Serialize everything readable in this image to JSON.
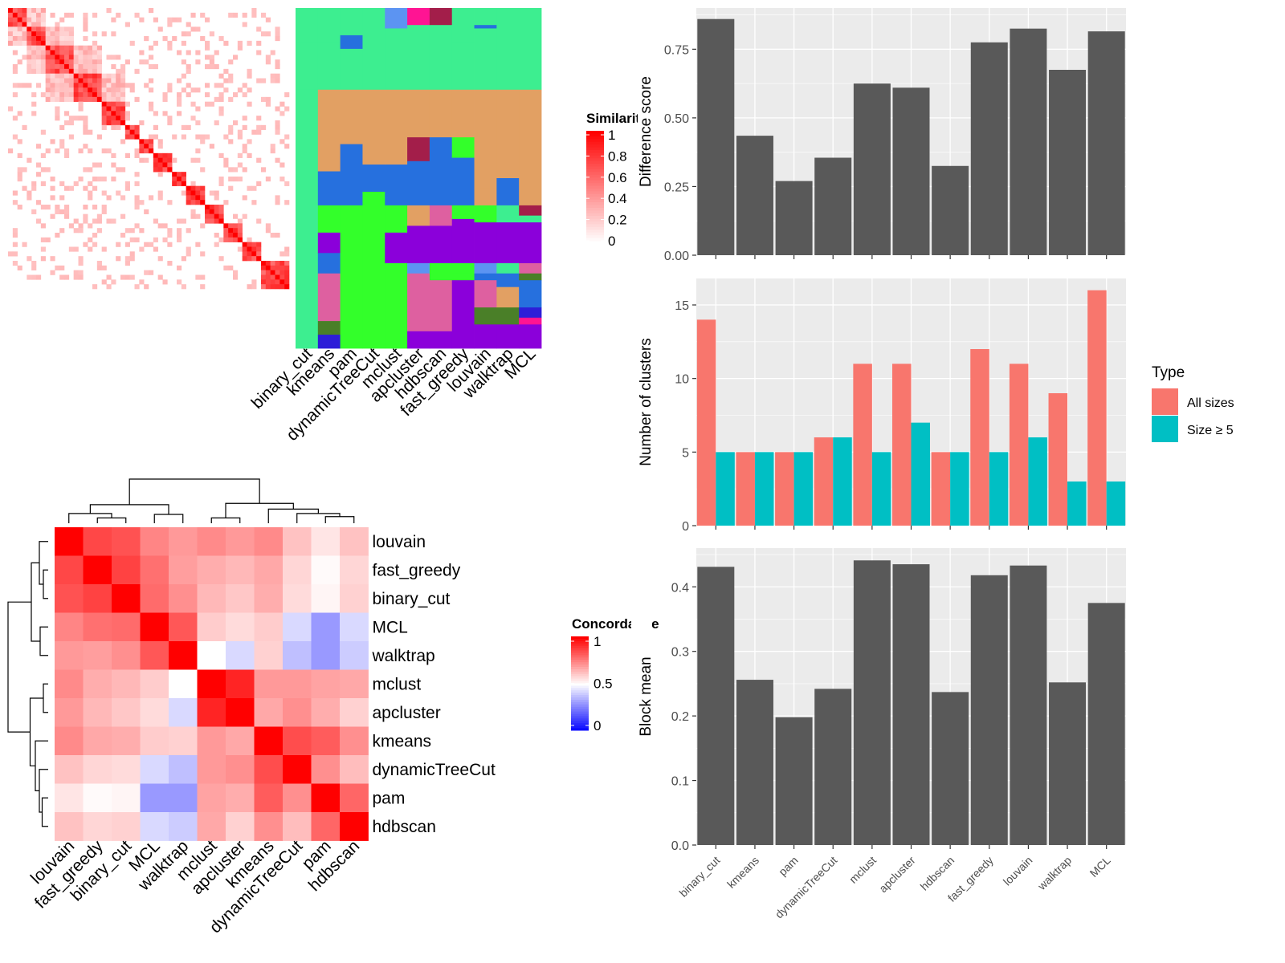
{
  "chart_data": [
    {
      "type": "heatmap",
      "panel": "similarity-heatmap",
      "legend_title": "Similarity",
      "legend_ticks": [
        "1",
        "0.8",
        "0.6",
        "0.4",
        "0.2",
        "0"
      ],
      "colors": {
        "high": "#ff0000",
        "low": "#ffffff"
      }
    },
    {
      "type": "heatmap",
      "panel": "cluster-membership",
      "methods": [
        "binary_cut",
        "kmeans",
        "pam",
        "dynamicTreeCut",
        "mclust",
        "apcluster",
        "hdbscan",
        "fast_greedy",
        "louvain",
        "walktrap",
        "MCL"
      ]
    },
    {
      "type": "heatmap",
      "panel": "concordance-heatmap",
      "legend_title": "Concordance",
      "legend_ticks": [
        "1",
        "0.5",
        "0"
      ],
      "colors": {
        "high": "#ff0000",
        "mid": "#ffffff",
        "low": "#0000ff"
      },
      "row_labels": [
        "louvain",
        "fast_greedy",
        "binary_cut",
        "MCL",
        "walktrap",
        "mclust",
        "apcluster",
        "kmeans",
        "dynamicTreeCut",
        "pam",
        "hdbscan"
      ],
      "col_labels": [
        "louvain",
        "fast_greedy",
        "binary_cut",
        "MCL",
        "walktrap",
        "mclust",
        "apcluster",
        "kmeans",
        "dynamicTreeCut",
        "pam",
        "hdbscan"
      ],
      "matrix": [
        [
          1.0,
          0.86,
          0.84,
          0.74,
          0.7,
          0.73,
          0.7,
          0.73,
          0.62,
          0.55,
          0.62
        ],
        [
          0.86,
          1.0,
          0.87,
          0.78,
          0.69,
          0.66,
          0.64,
          0.67,
          0.58,
          0.51,
          0.58
        ],
        [
          0.84,
          0.87,
          1.0,
          0.79,
          0.72,
          0.64,
          0.61,
          0.66,
          0.57,
          0.52,
          0.59
        ],
        [
          0.74,
          0.78,
          0.79,
          1.0,
          0.83,
          0.6,
          0.57,
          0.6,
          0.47,
          0.42,
          0.47
        ],
        [
          0.7,
          0.69,
          0.72,
          0.83,
          1.0,
          0.5,
          0.47,
          0.59,
          0.45,
          0.42,
          0.46
        ],
        [
          0.73,
          0.66,
          0.64,
          0.6,
          0.5,
          1.0,
          0.93,
          0.7,
          0.7,
          0.68,
          0.67
        ],
        [
          0.7,
          0.64,
          0.61,
          0.57,
          0.47,
          0.93,
          1.0,
          0.67,
          0.72,
          0.66,
          0.59
        ],
        [
          0.73,
          0.67,
          0.66,
          0.6,
          0.59,
          0.7,
          0.67,
          1.0,
          0.85,
          0.82,
          0.72
        ],
        [
          0.62,
          0.58,
          0.57,
          0.47,
          0.45,
          0.7,
          0.72,
          0.85,
          1.0,
          0.72,
          0.63
        ],
        [
          0.55,
          0.51,
          0.52,
          0.42,
          0.42,
          0.68,
          0.66,
          0.82,
          0.72,
          1.0,
          0.8
        ],
        [
          0.62,
          0.58,
          0.59,
          0.47,
          0.46,
          0.67,
          0.59,
          0.72,
          0.63,
          0.8,
          1.0
        ]
      ]
    },
    {
      "type": "bar",
      "panel": "difference-score",
      "categories": [
        "binary_cut",
        "kmeans",
        "pam",
        "dynamicTreeCut",
        "mclust",
        "apcluster",
        "hdbscan",
        "fast_greedy",
        "louvain",
        "walktrap",
        "MCL"
      ],
      "values": [
        0.86,
        0.435,
        0.27,
        0.355,
        0.625,
        0.61,
        0.325,
        0.775,
        0.825,
        0.675,
        0.815
      ],
      "ylabel": "Difference score",
      "ylim": [
        0,
        0.9
      ],
      "yticks": [
        "0.00",
        "0.25",
        "0.50",
        "0.75"
      ],
      "bar_color": "#595959"
    },
    {
      "type": "bar",
      "panel": "number-of-clusters",
      "categories": [
        "binary_cut",
        "kmeans",
        "pam",
        "dynamicTreeCut",
        "mclust",
        "apcluster",
        "hdbscan",
        "fast_greedy",
        "louvain",
        "walktrap",
        "MCL"
      ],
      "series": [
        {
          "name": "All sizes",
          "values": [
            14,
            5,
            5,
            6,
            11,
            11,
            5,
            12,
            11,
            9,
            16
          ],
          "color": "#F8766D"
        },
        {
          "name": "Size ≥ 5",
          "values": [
            5,
            5,
            5,
            6,
            5,
            7,
            5,
            5,
            6,
            3,
            3
          ],
          "color": "#00BFC4"
        }
      ],
      "ylabel": "Number of clusters",
      "ylim": [
        0,
        16.8
      ],
      "yticks": [
        "0",
        "5",
        "10",
        "15"
      ],
      "legend_title": "Type",
      "legend_placement": "right"
    },
    {
      "type": "bar",
      "panel": "block-mean",
      "categories": [
        "binary_cut",
        "kmeans",
        "pam",
        "dynamicTreeCut",
        "mclust",
        "apcluster",
        "hdbscan",
        "fast_greedy",
        "louvain",
        "walktrap",
        "MCL"
      ],
      "values": [
        0.431,
        0.256,
        0.198,
        0.242,
        0.441,
        0.435,
        0.237,
        0.418,
        0.433,
        0.252,
        0.375
      ],
      "ylabel": "Block mean",
      "ylim": [
        0,
        0.46
      ],
      "yticks": [
        "0.0",
        "0.1",
        "0.2",
        "0.3",
        "0.4"
      ],
      "bar_color": "#595959"
    }
  ]
}
